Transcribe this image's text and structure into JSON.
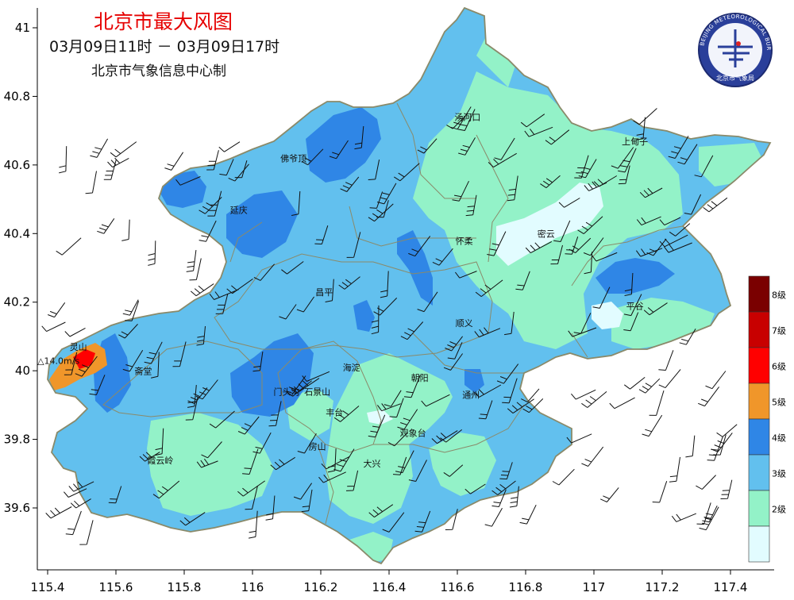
{
  "header": {
    "title": "北京市最大风图",
    "period": "03月09日11时 － 03月09日17时",
    "producer": "北京市气象信息中心制"
  },
  "logo": {
    "ring_text": "BEIJING METEOROLOGICAL BUREAU",
    "bottom_text": "北京市气象局"
  },
  "axes": {
    "x_ticks": [
      "115.4",
      "115.6",
      "115.8",
      "116",
      "116.2",
      "116.4",
      "116.6",
      "116.8",
      "117",
      "117.2",
      "117.4"
    ],
    "y_ticks": [
      "41",
      "40.8",
      "40.6",
      "40.4",
      "40.2",
      "40",
      "39.8",
      "39.6"
    ]
  },
  "legend": {
    "levels": [
      {
        "label": "8级",
        "color": "#7a0000"
      },
      {
        "label": "7级",
        "color": "#c80000"
      },
      {
        "label": "6级",
        "color": "#ff0000"
      },
      {
        "label": "5级",
        "color": "#f0962a"
      },
      {
        "label": "4级",
        "color": "#2f86e6"
      },
      {
        "label": "3级",
        "color": "#62c0ee"
      },
      {
        "label": "2级",
        "color": "#93f2c8"
      },
      {
        "label": "",
        "color": "#e2fcff"
      }
    ]
  },
  "stations": [
    {
      "name": "汤河口",
      "lon": 116.63,
      "lat": 40.73
    },
    {
      "name": "上甸子",
      "lon": 117.12,
      "lat": 40.66
    },
    {
      "name": "佛爷顶",
      "lon": 116.12,
      "lat": 40.61
    },
    {
      "name": "延庆",
      "lon": 115.96,
      "lat": 40.46
    },
    {
      "name": "密云",
      "lon": 116.86,
      "lat": 40.39
    },
    {
      "name": "怀柔",
      "lon": 116.62,
      "lat": 40.37
    },
    {
      "name": "昌平",
      "lon": 116.21,
      "lat": 40.22
    },
    {
      "name": "平谷",
      "lon": 117.12,
      "lat": 40.18
    },
    {
      "name": "顺义",
      "lon": 116.62,
      "lat": 40.13
    },
    {
      "name": "灵山",
      "lon": 115.49,
      "lat": 40.06
    },
    {
      "name": "海淀",
      "lon": 116.29,
      "lat": 40.0
    },
    {
      "name": "斋堂",
      "lon": 115.68,
      "lat": 39.99
    },
    {
      "name": "朝阳",
      "lon": 116.49,
      "lat": 39.97
    },
    {
      "name": "门头沟",
      "lon": 116.1,
      "lat": 39.93
    },
    {
      "name": "石景山",
      "lon": 116.19,
      "lat": 39.93
    },
    {
      "name": "通州",
      "lon": 116.64,
      "lat": 39.92
    },
    {
      "name": "丰台",
      "lon": 116.24,
      "lat": 39.87
    },
    {
      "name": "观象台",
      "lon": 116.47,
      "lat": 39.81
    },
    {
      "name": "霞云岭",
      "lon": 115.73,
      "lat": 39.73
    },
    {
      "name": "房山",
      "lon": 116.19,
      "lat": 39.77
    },
    {
      "name": "大兴",
      "lon": 116.35,
      "lat": 39.72
    }
  ],
  "max_wind": {
    "text": "△14.0m/s",
    "lon": 115.37,
    "lat": 40.02
  }
}
